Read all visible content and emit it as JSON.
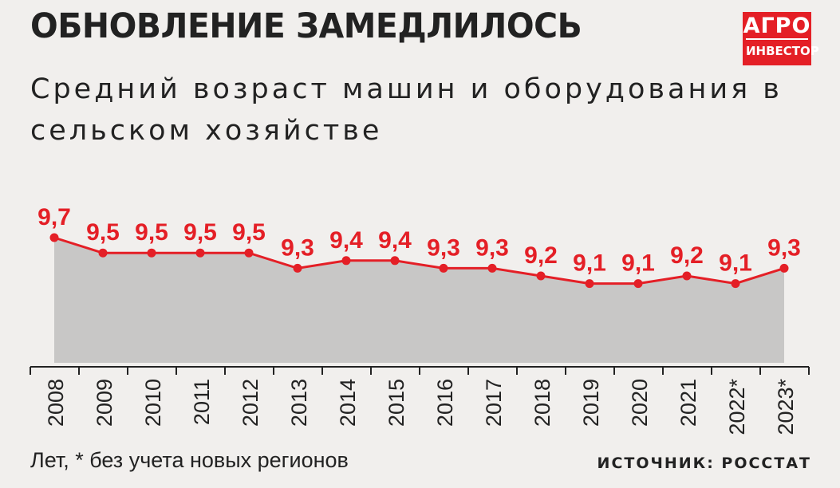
{
  "header": {
    "title": "ОБНОВЛЕНИЕ ЗАМЕДЛИЛОСЬ",
    "subtitle": "Средний возраст машин и оборудования в сельском хозяйстве"
  },
  "logo": {
    "line1": "АГРО",
    "line2": "ИНВЕСТОР"
  },
  "footer": {
    "note": "Лет, * без учета новых регионов",
    "source": "ИСТОЧНИК: РОССТАТ"
  },
  "colors": {
    "line": "#e41f26",
    "area": "#c8c7c6",
    "text": "#222222"
  },
  "chart_data": {
    "type": "area",
    "categories": [
      "2008",
      "2009",
      "2010",
      "2011",
      "2012",
      "2013",
      "2014",
      "2015",
      "2016",
      "2017",
      "2018",
      "2019",
      "2020",
      "2021",
      "2022*",
      "2023*"
    ],
    "values": [
      9.7,
      9.5,
      9.5,
      9.5,
      9.5,
      9.3,
      9.4,
      9.4,
      9.3,
      9.3,
      9.2,
      9.1,
      9.1,
      9.2,
      9.1,
      9.3
    ],
    "data_labels": [
      "9,7",
      "9,5",
      "9,5",
      "9,5",
      "9,5",
      "9,3",
      "9,4",
      "9,4",
      "9,3",
      "9,3",
      "9,2",
      "9,1",
      "9,1",
      "9,2",
      "9,1",
      "9,3"
    ],
    "ylabel": "Лет"
  }
}
